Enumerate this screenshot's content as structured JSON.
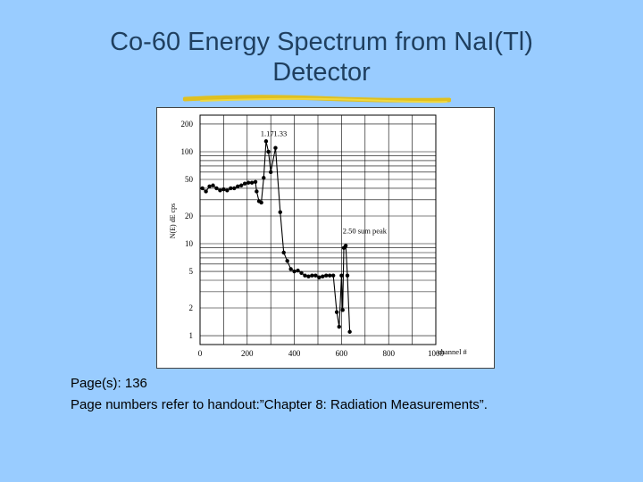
{
  "slide": {
    "title_line1": "Co-60 Energy Spectrum from NaI(Tl)",
    "title_line2": "Detector"
  },
  "notes": {
    "line1": "Page(s): 136",
    "line2": "Page numbers refer to handout:”Chapter 8: Radiation Measurements”."
  },
  "chart_data": {
    "type": "scatter",
    "xlabel": "channel #",
    "ylabel": "N(E) dE cps",
    "x_scale": "linear",
    "y_scale": "log",
    "xlim": [
      0,
      1000
    ],
    "ylim": [
      0.8,
      250
    ],
    "x_ticks": [
      0,
      200,
      400,
      600,
      800,
      1000
    ],
    "y_ticks": [
      1,
      2,
      5,
      10,
      20,
      50,
      100,
      200
    ],
    "grid": true,
    "annotations": [
      {
        "text": "1.17",
        "x": 285,
        "y": 148
      },
      {
        "text": "1.33",
        "x": 340,
        "y": 148
      },
      {
        "text": "2.50 sum peak",
        "x": 605,
        "y": 13
      }
    ],
    "series": [
      {
        "x": [
          10,
          25,
          40,
          55,
          70,
          85,
          100,
          115,
          130,
          145,
          160,
          175,
          190,
          205,
          220,
          235,
          240,
          250,
          260,
          270,
          280,
          290,
          300,
          320,
          340,
          355,
          370,
          385,
          400,
          415,
          430,
          445,
          460,
          475,
          490,
          505,
          520,
          535,
          550,
          565,
          580,
          590,
          600,
          605,
          610,
          618,
          625,
          635
        ],
        "y": [
          40,
          37,
          42,
          43,
          40,
          38,
          39,
          38,
          40,
          40,
          42,
          43,
          45,
          46,
          46,
          47,
          37,
          29,
          28,
          52,
          130,
          100,
          60,
          110,
          22,
          8,
          6.5,
          5.3,
          5.0,
          5.1,
          4.8,
          4.5,
          4.4,
          4.5,
          4.5,
          4.3,
          4.4,
          4.5,
          4.5,
          4.5,
          1.8,
          1.25,
          4.5,
          1.9,
          9,
          9.5,
          4.5,
          1.1
        ]
      }
    ]
  }
}
